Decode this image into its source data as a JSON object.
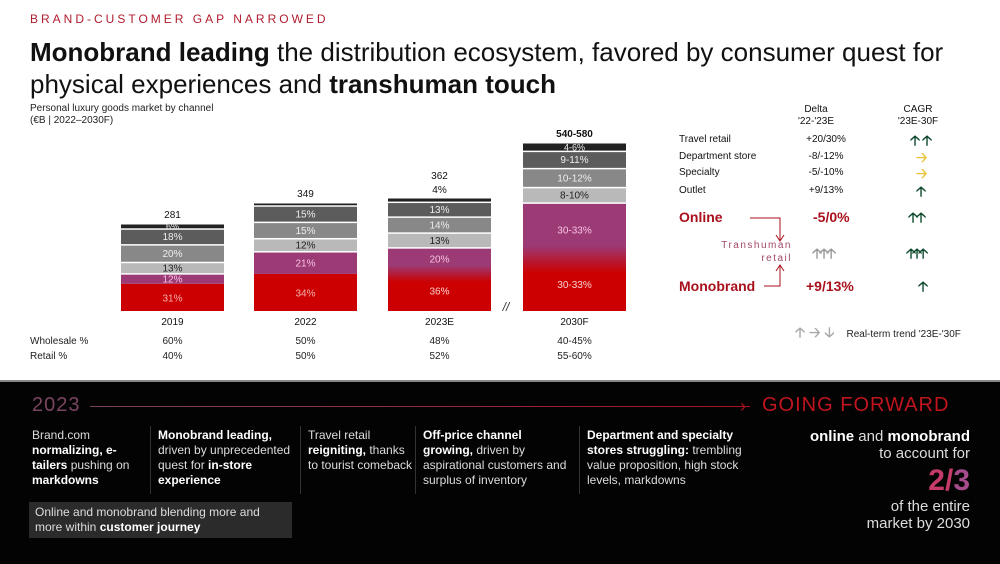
{
  "kicker": "BRAND-CUSTOMER GAP NARROWED",
  "headline": {
    "part1_bold": "Monobrand leading",
    "part2": " the distribution ecosystem, favored by consumer quest for physical experiences and ",
    "part3_bold": "transhuman touch"
  },
  "subtitle": {
    "line1": "Personal luxury goods market by channel",
    "line2": "(€B | 2022–2030F)"
  },
  "colors": {
    "monobrand": "#cc0000",
    "online": "#9b3a74",
    "outlet": "#b9b9b9",
    "specialty": "#888888",
    "department_store": "#5c5c5c",
    "travel_retail": "#222222",
    "accent_red": "#a8101c",
    "arrow_green": "#0f4a2e",
    "arrow_yellow": "#e7c53b"
  },
  "chart_data": {
    "type": "bar",
    "stacked": true,
    "title": "Personal luxury goods market by channel",
    "subtitle": "(€B | 2022–2030F)",
    "categories": [
      "2019",
      "2022",
      "2023E",
      "2030F"
    ],
    "totals": [
      "281",
      "349",
      "362",
      "540-580"
    ],
    "total_values": [
      281,
      349,
      362,
      560
    ],
    "series": [
      {
        "name": "Monobrand",
        "color_key": "monobrand",
        "values": [
          31,
          34,
          36,
          31.5
        ],
        "labels": [
          "31%",
          "34%",
          "36%",
          "30-33%"
        ]
      },
      {
        "name": "Online",
        "color_key": "online",
        "values": [
          12,
          21,
          20,
          31.5
        ],
        "labels": [
          "12%",
          "21%",
          "20%",
          "30-33%"
        ]
      },
      {
        "name": "Outlet",
        "color_key": "outlet",
        "values": [
          13,
          12,
          13,
          9
        ],
        "labels": [
          "13%",
          "12%",
          "13%",
          "8-10%"
        ]
      },
      {
        "name": "Specialty",
        "color_key": "specialty",
        "values": [
          20,
          15,
          14,
          11
        ],
        "labels": [
          "20%",
          "15%",
          "14%",
          "10-12%"
        ]
      },
      {
        "name": "Department store",
        "color_key": "department_store",
        "values": [
          18,
          15,
          13,
          10
        ],
        "labels": [
          "18%",
          "15%",
          "13%",
          "9-11%"
        ]
      },
      {
        "name": "Travel retail",
        "color_key": "travel_retail",
        "values": [
          6,
          3,
          4,
          5
        ],
        "labels": [
          "6%",
          "",
          "4%",
          "4-6%"
        ]
      }
    ],
    "axis_break_between": [
      "2023E",
      "2030F"
    ],
    "axis_break_label": "//",
    "xlabel": "",
    "ylabel": "",
    "grid": false,
    "footer_rows": [
      {
        "label": "Wholesale %",
        "values": [
          "60%",
          "50%",
          "48%",
          "40-45%"
        ]
      },
      {
        "label": "Retail %",
        "values": [
          "40%",
          "50%",
          "52%",
          "55-60%"
        ]
      }
    ]
  },
  "right_table": {
    "delta_header": [
      "Delta",
      "'22-'23E"
    ],
    "cagr_header": [
      "CAGR",
      "'23E-30F"
    ],
    "rows": [
      {
        "label": "Travel retail",
        "delta": "+20/30%",
        "cagr_icon": "double-up-arrow-icon",
        "cagr_glyph": "🡡🡡",
        "cagr_color": "green"
      },
      {
        "label": "Department store",
        "delta": "-8/-12%",
        "cagr_icon": "right-arrow-icon",
        "cagr_glyph": "🡢",
        "cagr_color": "yellow"
      },
      {
        "label": "Specialty",
        "delta": "-5/-10%",
        "cagr_icon": "right-arrow-icon",
        "cagr_glyph": "🡢",
        "cagr_color": "yellow"
      },
      {
        "label": "Outlet",
        "delta": "+9/13%",
        "cagr_icon": "up-arrow-icon",
        "cagr_glyph": "🡡",
        "cagr_color": "green"
      }
    ],
    "online": {
      "label": "Online",
      "delta": "-5/0%",
      "cagr_glyph": "🡡🡡"
    },
    "transhuman": {
      "line1": "Transhuman",
      "line2": "retail",
      "delta_glyph": "🡡🡡🡡",
      "cagr_glyph": "🡡🡡🡡"
    },
    "monobrand": {
      "label": "Monobrand",
      "delta": "+9/13%",
      "cagr_glyph": "🡡"
    },
    "legend": {
      "up": "🡡",
      "right": "🡢",
      "down": "🡣",
      "text": "Real-term trend '23E-'30F"
    }
  },
  "bottom": {
    "start_label": "2023",
    "end_label": "GOING FORWARD",
    "columns": [
      {
        "segments": [
          [
            "Brand.com",
            false
          ],
          [
            " normalizing,",
            true
          ],
          [
            " e-tailers",
            true
          ],
          [
            " pushing on ",
            false
          ],
          [
            "markdowns",
            true
          ]
        ]
      },
      {
        "segments": [
          [
            "Monobrand leading,",
            true
          ],
          [
            " driven by unprecedented quest for ",
            false
          ],
          [
            "in-store experience",
            true
          ]
        ]
      },
      {
        "segments": [
          [
            "Travel retail ",
            false
          ],
          [
            "reigniting,",
            true
          ],
          [
            " thanks to tourist comeback",
            false
          ]
        ]
      },
      {
        "segments": [
          [
            "Off-price channel growing,",
            true
          ],
          [
            " driven by aspirational customers and surplus of inventory",
            false
          ]
        ]
      },
      {
        "segments": [
          [
            "Department and specialty stores struggling:",
            true
          ],
          [
            " trembling value proposition, high stock levels, markdowns",
            false
          ]
        ]
      }
    ],
    "callout": {
      "plain": "Online and monobrand blending more and more within ",
      "bold": "customer journey"
    },
    "forward": {
      "w1": "online",
      "w2": " and ",
      "w3": "monobrand",
      "line2": "to account for",
      "fraction_num": "2/",
      "fraction_den": "3",
      "line3": "of the entire",
      "line4": "market by 2030"
    }
  }
}
